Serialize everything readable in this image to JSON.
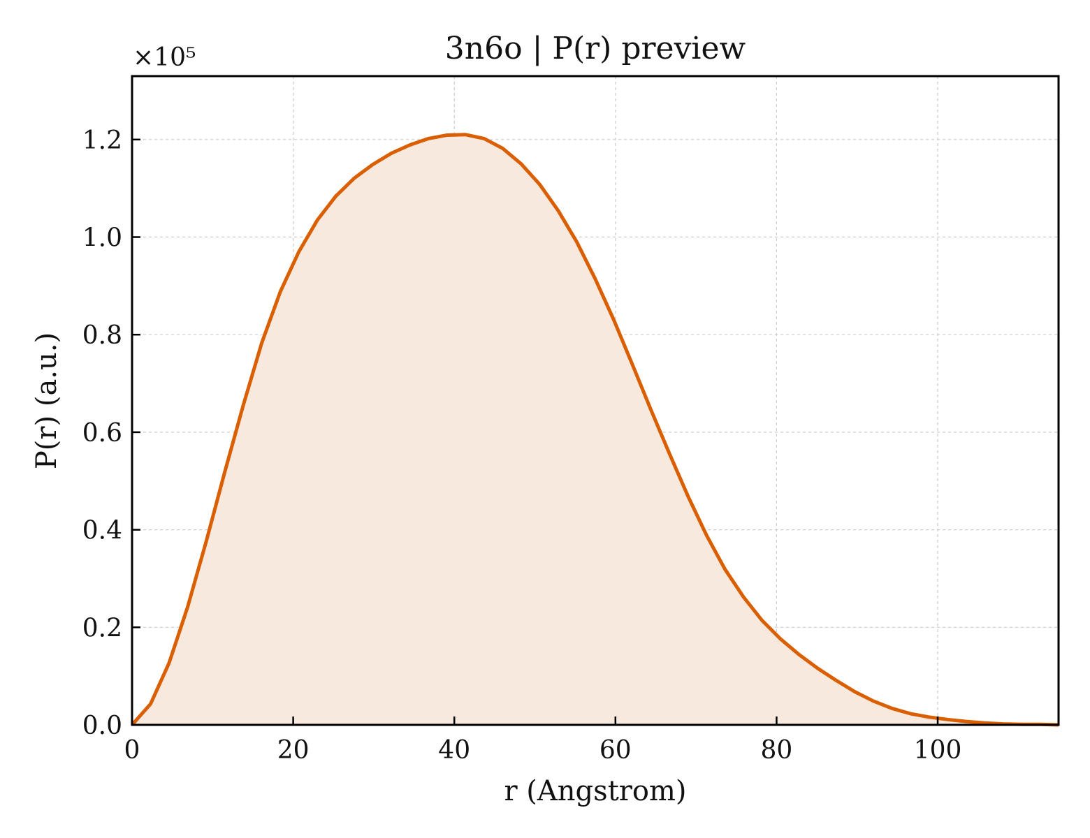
{
  "chart_data": {
    "type": "area",
    "title": "3n6o | P(r) preview",
    "xlabel": "r (Angstrom)",
    "ylabel": "P(r) (a.u.)",
    "y_multiplier_label": "×10⁵",
    "xlim": [
      0,
      115
    ],
    "ylim": [
      0,
      1.33
    ],
    "x_ticks": [
      0,
      20,
      40,
      60,
      80,
      100
    ],
    "x_tick_labels": [
      "0",
      "20",
      "40",
      "60",
      "80",
      "100"
    ],
    "y_ticks": [
      0.0,
      0.2,
      0.4,
      0.6,
      0.8,
      1.0,
      1.2
    ],
    "y_tick_labels": [
      "0.0",
      "0.2",
      "0.4",
      "0.6",
      "0.8",
      "1.0",
      "1.2"
    ],
    "grid": true,
    "series": [
      {
        "x": [
          0,
          2.3,
          4.6,
          6.9,
          9.2,
          11.5,
          13.8,
          16.1,
          18.4,
          20.7,
          23.0,
          25.3,
          27.6,
          29.9,
          32.2,
          34.5,
          36.8,
          39.1,
          41.4,
          43.7,
          46.0,
          48.3,
          50.6,
          52.9,
          55.2,
          57.5,
          59.8,
          62.1,
          64.4,
          66.7,
          69.0,
          71.3,
          73.6,
          75.9,
          78.2,
          80.5,
          82.8,
          85.1,
          87.4,
          89.7,
          92.0,
          94.3,
          96.6,
          98.9,
          101.2,
          103.5,
          105.8,
          108.1,
          110.4,
          112.7,
          115.0
        ],
        "values": [
          0.0,
          0.043,
          0.127,
          0.242,
          0.376,
          0.518,
          0.655,
          0.783,
          0.888,
          0.97,
          1.035,
          1.084,
          1.121,
          1.149,
          1.172,
          1.189,
          1.202,
          1.209,
          1.21,
          1.202,
          1.182,
          1.15,
          1.108,
          1.054,
          0.99,
          0.914,
          0.83,
          0.739,
          0.646,
          0.556,
          0.469,
          0.389,
          0.319,
          0.262,
          0.214,
          0.176,
          0.144,
          0.116,
          0.091,
          0.068,
          0.049,
          0.034,
          0.023,
          0.016,
          0.011,
          0.007,
          0.004,
          0.002,
          0.001,
          0.001,
          0.0
        ],
        "color": "#d95f02",
        "fill_color": "#f8e9de"
      }
    ]
  }
}
